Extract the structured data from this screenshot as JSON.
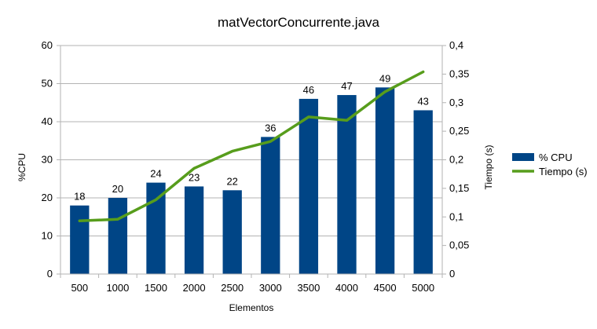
{
  "chart_data": {
    "type": "bar",
    "title": "matVectorConcurrente.java",
    "xlabel": "Elementos",
    "ylabel": "%CPU",
    "y2label": "Tiempo (s)",
    "categories": [
      "500",
      "1000",
      "1500",
      "2000",
      "2500",
      "3000",
      "3500",
      "4000",
      "4500",
      "5000"
    ],
    "ylim": [
      0,
      60
    ],
    "yticks": [
      "0",
      "10",
      "20",
      "30",
      "40",
      "50",
      "60"
    ],
    "y2lim": [
      0,
      0.4
    ],
    "y2ticks": [
      "0",
      "0,05",
      "0,1",
      "0,15",
      "0,2",
      "0,25",
      "0,3",
      "0,35",
      "0,4"
    ],
    "grid": true,
    "legend_position": "right",
    "series": [
      {
        "name": "% CPU",
        "type": "bar",
        "axis": "left",
        "color": "#004586",
        "values": [
          18,
          20,
          24,
          23,
          22,
          36,
          46,
          47,
          49,
          43
        ],
        "labels": [
          "18",
          "20",
          "24",
          "23",
          "22",
          "36",
          "46",
          "47",
          "49",
          "43"
        ]
      },
      {
        "name": "Tiempo (s)",
        "type": "line",
        "axis": "right",
        "color": "#579d1c",
        "values": [
          0.093,
          0.096,
          0.13,
          0.185,
          0.215,
          0.232,
          0.275,
          0.269,
          0.319,
          0.354
        ]
      }
    ]
  }
}
